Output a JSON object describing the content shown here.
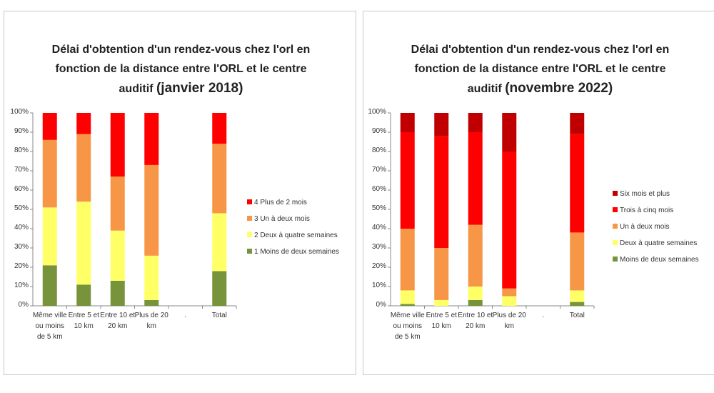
{
  "chart_data": [
    {
      "type": "stacked_bar",
      "title": "Délai d'obtention d'un rendez-vous chez l'orl en fonction de la distance entre l'ORL et le centre auditif",
      "subtitle": "(janvier 2018)",
      "categories": [
        "Même ville ou moins de 5 km",
        "Entre 5 et 10 km",
        "Entre 10 et 20 km",
        "Plus de 20 km",
        ".",
        "Total"
      ],
      "series": [
        {
          "name": "1 Moins de deux semaines",
          "color": "#77933c",
          "values": [
            21,
            11,
            13,
            3,
            null,
            18
          ]
        },
        {
          "name": "2 Deux à quatre semaines",
          "color": "#ffff66",
          "values": [
            30,
            43,
            26,
            23,
            null,
            30
          ]
        },
        {
          "name": "3 Un à deux mois",
          "color": "#f79646",
          "values": [
            35,
            35,
            28,
            47,
            null,
            36
          ]
        },
        {
          "name": "4 Plus de 2 mois",
          "color": "#ff0000",
          "values": [
            14,
            11,
            33,
            27,
            null,
            16
          ]
        }
      ],
      "ylim": [
        0,
        100
      ],
      "yticks": [
        {
          "value": 0,
          "label": "0%"
        },
        {
          "value": 10,
          "label": "10%"
        },
        {
          "value": 20,
          "label": "20%"
        },
        {
          "value": 30,
          "label": "30%"
        },
        {
          "value": 40,
          "label": "40%"
        },
        {
          "value": 50,
          "label": "50%"
        },
        {
          "value": 60,
          "label": "60%"
        },
        {
          "value": 70,
          "label": "70%"
        },
        {
          "value": 80,
          "label": "80%"
        },
        {
          "value": 90,
          "label": "90%"
        },
        {
          "value": 100,
          "label": "100%"
        }
      ],
      "legend": "right"
    },
    {
      "type": "stacked_bar",
      "title": "Délai d'obtention d'un rendez-vous chez l'orl en fonction de la distance entre l'ORL et le centre auditif",
      "subtitle": "(novembre 2022)",
      "categories": [
        "Même ville ou moins de 5 km",
        "Entre 5 et 10 km",
        "Entre 10 et 20 km",
        "Plus de 20 km",
        ".",
        "Total"
      ],
      "series": [
        {
          "name": "Moins de deux semaines",
          "color": "#77933c",
          "values": [
            1,
            0,
            3,
            0,
            null,
            2
          ]
        },
        {
          "name": "Deux à quatre semaines",
          "color": "#ffff66",
          "values": [
            7,
            3,
            7,
            5,
            null,
            6
          ]
        },
        {
          "name": "Un à deux mois",
          "color": "#f79646",
          "values": [
            32,
            27,
            32,
            4,
            null,
            30
          ]
        },
        {
          "name": "Trois à cinq mois",
          "color": "#ff0000",
          "values": [
            50,
            58,
            48,
            71,
            null,
            51
          ]
        },
        {
          "name": "Six mois et plus",
          "color": "#c00000",
          "values": [
            10,
            12,
            10,
            20,
            null,
            11
          ]
        }
      ],
      "ylim": [
        0,
        100
      ],
      "yticks": [
        {
          "value": 0,
          "label": "0%"
        },
        {
          "value": 10,
          "label": "10%"
        },
        {
          "value": 20,
          "label": "20%"
        },
        {
          "value": 30,
          "label": "30%"
        },
        {
          "value": 40,
          "label": "40%"
        },
        {
          "value": 50,
          "label": "50%"
        },
        {
          "value": 60,
          "label": "60%"
        },
        {
          "value": 70,
          "label": "70%"
        },
        {
          "value": 80,
          "label": "80%"
        },
        {
          "value": 90,
          "label": "90%"
        },
        {
          "value": 100,
          "label": "100%"
        }
      ],
      "legend": "right"
    }
  ]
}
